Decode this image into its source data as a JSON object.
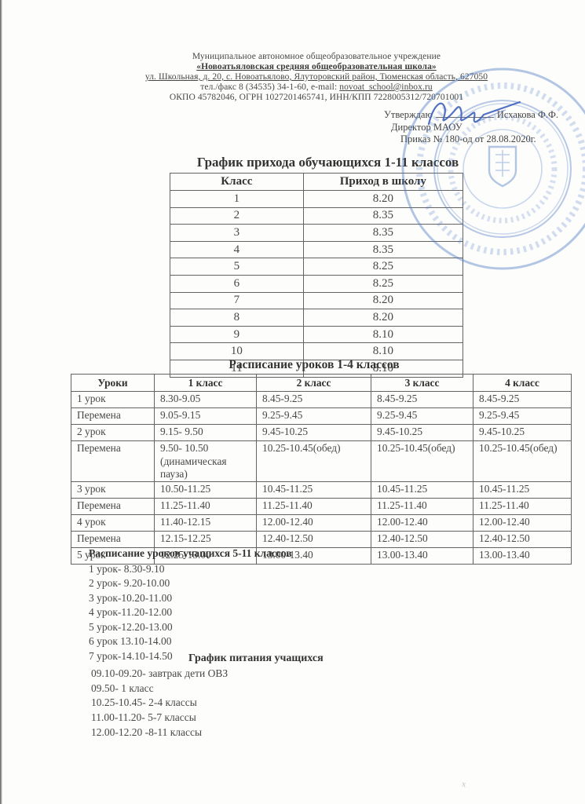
{
  "header": {
    "line1": "Муниципальное автономное общеобразовательное учреждение",
    "line2": "«Новоатьяловская средняя общеобразовательная школа»",
    "line3": "ул. Школьная, д. 20, с. Новоатьялово, Ялуторовский район, Тюменская область, 627050",
    "line4_prefix": "тел./факс 8 (34535) 34-1-60,  e-mail: ",
    "line4_email": "novoat_school@inbox.ru",
    "line5": "ОКПО 45782046, ОГРН 1027201465741, ИНН/КПП 7228005312/720701001"
  },
  "approval": {
    "approve_label": "Утверждаю",
    "approver_name": "Исхакова Ф.Ф.",
    "approver_role": "Директор МАОУ",
    "order_line": "Приказ № 180-од от 28.08.2020г."
  },
  "arrival_table": {
    "title": "График прихода обучающихся 1-11 классов",
    "columns": [
      "Класс",
      "Приход в школу"
    ],
    "rows": [
      [
        "1",
        "8.20"
      ],
      [
        "2",
        "8.35"
      ],
      [
        "3",
        "8.35"
      ],
      [
        "4",
        "8.35"
      ],
      [
        "5",
        "8.25"
      ],
      [
        "6",
        "8.25"
      ],
      [
        "7",
        "8.20"
      ],
      [
        "8",
        "8.20"
      ],
      [
        "9",
        "8.10"
      ],
      [
        "10",
        "8.10"
      ],
      [
        "11",
        "8.10"
      ]
    ]
  },
  "lessons_table": {
    "title": "Расписание уроков 1-4 классов",
    "columns": [
      "Уроки",
      "1 класс",
      "2 класс",
      "3 класс",
      "4 класс"
    ],
    "rows": [
      [
        "1 урок",
        "8.30-9.05",
        "8.45-9.25",
        "8.45-9.25",
        "8.45-9.25"
      ],
      [
        "Перемена",
        "9.05-9.15",
        "9.25-9.45",
        "9.25-9.45",
        "9.25-9.45"
      ],
      [
        "2 урок",
        "9.15- 9.50",
        "9.45-10.25",
        "9.45-10.25",
        "9.45-10.25"
      ],
      [
        "Перемена",
        "9.50- 10.50 (динамическая пауза)",
        "10.25-10.45(обед)",
        "10.25-10.45(обед)",
        "10.25-10.45(обед)"
      ],
      [
        "3 урок",
        "10.50-11.25",
        "10.45-11.25",
        "10.45-11.25",
        "10.45-11.25"
      ],
      [
        "Перемена",
        "11.25-11.40",
        "11.25-11.40",
        "11.25-11.40",
        "11.25-11.40"
      ],
      [
        "4 урок",
        "11.40-12.15",
        "12.00-12.40",
        "12.00-12.40",
        "12.00-12.40"
      ],
      [
        "Перемена",
        "12.15-12.25",
        "12.40-12.50",
        "12.40-12.50",
        "12.40-12.50"
      ],
      [
        "5 урок",
        "12.25-13.00",
        "13.00-13.40",
        "13.00-13.40",
        "13.00-13.40"
      ]
    ]
  },
  "senior_schedule": {
    "title": "Расписание уроков учащихся 5-11 классов",
    "items": [
      "1 урок- 8.30-9.10",
      "2 урок- 9.20-10.00",
      "3 урок-10.20-11.00",
      "4 урок-11.20-12.00",
      "5 урок-12.20-13.00",
      "6 урок 13.10-14.00",
      "7 урок-14.10-14.50"
    ]
  },
  "meal_schedule": {
    "title": "График питания учащихся",
    "items": [
      "09.10-09.20- завтрак дети ОВЗ",
      "09.50- 1 класс",
      "10.25-10.45- 2-4 классы",
      "11.00-11.20- 5-7 классы",
      "12.00-12.20 -8-11 классы"
    ]
  },
  "stamp_color": "#4d7bc4",
  "signature_color": "#3f62bd",
  "scan_speck": "х"
}
